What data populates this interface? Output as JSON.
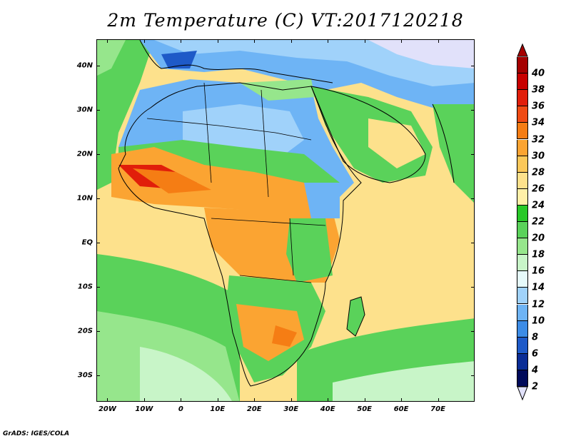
{
  "title": "2m Temperature (C) VT:2017120218",
  "credit": "GrADS: IGES/COLA",
  "map": {
    "lon_range": [
      -23,
      80
    ],
    "lat_range": [
      -36,
      46
    ],
    "lat_labels": [
      {
        "value": 40,
        "text": "40N"
      },
      {
        "value": 30,
        "text": "30N"
      },
      {
        "value": 20,
        "text": "20N"
      },
      {
        "value": 10,
        "text": "10N"
      },
      {
        "value": 0,
        "text": "EQ"
      },
      {
        "value": -10,
        "text": "10S"
      },
      {
        "value": -20,
        "text": "20S"
      },
      {
        "value": -30,
        "text": "30S"
      }
    ],
    "lon_labels": [
      {
        "value": -20,
        "text": "20W"
      },
      {
        "value": -10,
        "text": "10W"
      },
      {
        "value": 0,
        "text": "0"
      },
      {
        "value": 10,
        "text": "10E"
      },
      {
        "value": 20,
        "text": "20E"
      },
      {
        "value": 30,
        "text": "30E"
      },
      {
        "value": 40,
        "text": "40E"
      },
      {
        "value": 50,
        "text": "50E"
      },
      {
        "value": 60,
        "text": "60E"
      },
      {
        "value": 70,
        "text": "70E"
      }
    ]
  },
  "colorbar": {
    "labels": [
      "40",
      "38",
      "36",
      "34",
      "32",
      "30",
      "28",
      "26",
      "24",
      "22",
      "20",
      "18",
      "16",
      "14",
      "12",
      "10",
      "8",
      "6",
      "4",
      "2"
    ],
    "colors": [
      "#a50000",
      "#c80000",
      "#e11e0a",
      "#f04b14",
      "#f57d14",
      "#fba432",
      "#fbc85a",
      "#fde18c",
      "#fff0a8",
      "#28c828",
      "#5ad25a",
      "#96e68c",
      "#c8f5c8",
      "#e6fafa",
      "#a0d2fa",
      "#6eb4f5",
      "#3c8ce6",
      "#1e5ac8",
      "#0a2d96",
      "#000a5a"
    ],
    "top_arrow_color": "#a50000",
    "bottom_arrow_color": "#e1e1fa"
  },
  "color_zones": [
    {
      "name": "europe-cold",
      "color": "#e1e1fa"
    },
    {
      "name": "north-africa-blue",
      "color": "#6eb4f5"
    },
    {
      "name": "sahel-green",
      "color": "#5ad25a"
    },
    {
      "name": "west-africa-hot",
      "color": "#f57d14"
    },
    {
      "name": "tropical-ocean",
      "color": "#fde18c"
    },
    {
      "name": "south-atlantic",
      "color": "#5ad25a"
    },
    {
      "name": "southern-ocean",
      "color": "#c8f5c8"
    }
  ]
}
